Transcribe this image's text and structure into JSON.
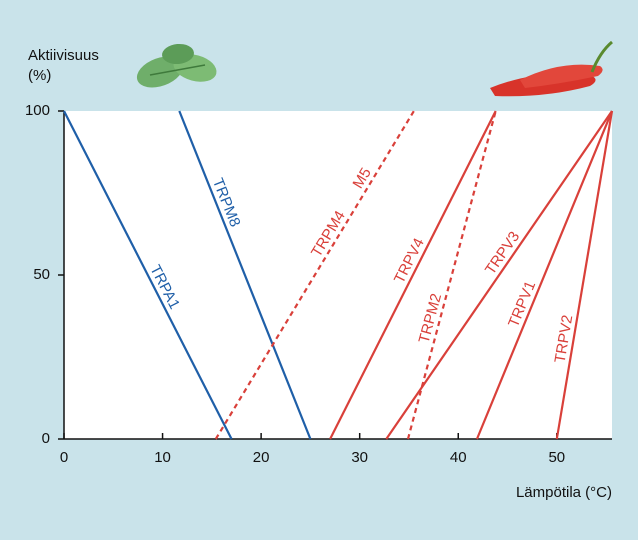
{
  "chart_data": {
    "type": "line",
    "ylabel": "Aktiivisuus",
    "yunit": "(%)",
    "xlabel": "Lämpötila (°C)",
    "xlim": [
      0,
      55.6
    ],
    "ylim": [
      0,
      100
    ],
    "xticks": [
      0,
      10,
      20,
      30,
      40,
      50
    ],
    "yticks": [
      0,
      50,
      100
    ],
    "series": [
      {
        "name": "TRPA1",
        "color": "#1f5fa8",
        "dashed": false,
        "x": [
          0,
          17
        ],
        "values": [
          100,
          0
        ]
      },
      {
        "name": "TRPM8",
        "color": "#1f5fa8",
        "dashed": false,
        "x": [
          11.7,
          25
        ],
        "values": [
          100,
          0
        ]
      },
      {
        "name": "TRPM4",
        "extra_label": "M5",
        "color": "#d9403a",
        "dashed": true,
        "x": [
          15.4,
          35.5
        ],
        "values": [
          0,
          100
        ]
      },
      {
        "name": "TRPV4",
        "color": "#d9403a",
        "dashed": false,
        "x": [
          27,
          43.8
        ],
        "values": [
          0,
          100
        ]
      },
      {
        "name": "TRPM2",
        "color": "#d9403a",
        "dashed": true,
        "x": [
          34.9,
          43.8
        ],
        "values": [
          0,
          100
        ]
      },
      {
        "name": "TRPV3",
        "color": "#d9403a",
        "dashed": false,
        "x": [
          32.7,
          55.6
        ],
        "values": [
          0,
          100
        ]
      },
      {
        "name": "TRPV1",
        "color": "#d9403a",
        "dashed": false,
        "x": [
          41.9,
          55.6
        ],
        "values": [
          0,
          100
        ]
      },
      {
        "name": "TRPV2",
        "color": "#d9403a",
        "dashed": false,
        "x": [
          50,
          55.6
        ],
        "values": [
          0,
          100
        ]
      }
    ]
  }
}
